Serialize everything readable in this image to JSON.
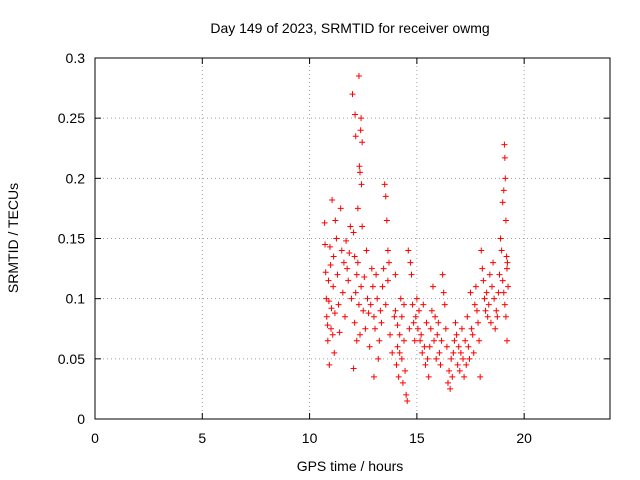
{
  "chart_data": {
    "type": "scatter",
    "title": "Day 149 of 2023, SRMTID for receiver owmg",
    "xlabel": "GPS time / hours",
    "ylabel": "SRMTID / TECUs",
    "xlim": [
      0,
      24
    ],
    "ylim": [
      0,
      0.3
    ],
    "xticks": [
      0,
      5,
      10,
      15,
      20
    ],
    "xtick_labels": [
      "0",
      "5",
      "10",
      "15",
      "20"
    ],
    "yticks": [
      0,
      0.05,
      0.1,
      0.15,
      0.2,
      0.25,
      0.3
    ],
    "ytick_labels": [
      "0",
      "0.05",
      "0.1",
      "0.15",
      "0.2",
      "0.25",
      "0.3"
    ],
    "grid": true,
    "marker": "+",
    "series": [
      {
        "name": "SRMTID",
        "color": "#ff0000",
        "points": [
          [
            10.7,
            0.163
          ],
          [
            10.75,
            0.122
          ],
          [
            10.8,
            0.085
          ],
          [
            10.85,
            0.065
          ],
          [
            10.9,
            0.098
          ],
          [
            10.95,
            0.143
          ],
          [
            11.0,
            0.075
          ],
          [
            11.05,
            0.182
          ],
          [
            11.1,
            0.11
          ],
          [
            11.15,
            0.055
          ],
          [
            10.72,
            0.145
          ],
          [
            10.78,
            0.1
          ],
          [
            10.84,
            0.078
          ],
          [
            10.88,
            0.115
          ],
          [
            10.92,
            0.045
          ],
          [
            10.98,
            0.128
          ],
          [
            11.02,
            0.092
          ],
          [
            11.08,
            0.07
          ],
          [
            11.12,
            0.135
          ],
          [
            11.18,
            0.088
          ],
          [
            11.2,
            0.165
          ],
          [
            11.25,
            0.15
          ],
          [
            11.3,
            0.12
          ],
          [
            11.35,
            0.095
          ],
          [
            11.4,
            0.072
          ],
          [
            11.45,
            0.175
          ],
          [
            11.5,
            0.14
          ],
          [
            11.55,
            0.105
          ],
          [
            11.6,
            0.13
          ],
          [
            11.65,
            0.085
          ],
          [
            11.7,
            0.148
          ],
          [
            11.75,
            0.125
          ],
          [
            11.8,
            0.115
          ],
          [
            11.85,
            0.138
          ],
          [
            11.9,
            0.16
          ],
          [
            11.95,
            0.1
          ],
          [
            12.0,
            0.27
          ],
          [
            12.05,
            0.155
          ],
          [
            12.1,
            0.135
          ],
          [
            12.12,
            0.253
          ],
          [
            12.15,
            0.235
          ],
          [
            12.2,
            0.12
          ],
          [
            12.25,
            0.175
          ],
          [
            12.3,
            0.285
          ],
          [
            12.32,
            0.21
          ],
          [
            12.35,
            0.205
          ],
          [
            12.38,
            0.24
          ],
          [
            12.4,
            0.25
          ],
          [
            12.42,
            0.195
          ],
          [
            12.45,
            0.23
          ],
          [
            12.1,
            0.08
          ],
          [
            12.2,
            0.065
          ],
          [
            12.3,
            0.095
          ],
          [
            12.4,
            0.11
          ],
          [
            12.5,
            0.09
          ],
          [
            12.6,
            0.075
          ],
          [
            12.7,
            0.1
          ],
          [
            12.8,
            0.06
          ],
          [
            12.9,
            0.125
          ],
          [
            13.0,
            0.085
          ],
          [
            12.05,
            0.042
          ],
          [
            12.15,
            0.105
          ],
          [
            12.25,
            0.13
          ],
          [
            12.35,
            0.07
          ],
          [
            12.45,
            0.16
          ],
          [
            12.55,
            0.118
          ],
          [
            12.65,
            0.14
          ],
          [
            12.75,
            0.088
          ],
          [
            12.85,
            0.095
          ],
          [
            12.95,
            0.11
          ],
          [
            13.0,
            0.035
          ],
          [
            13.1,
            0.12
          ],
          [
            13.2,
            0.05
          ],
          [
            13.3,
            0.09
          ],
          [
            13.4,
            0.11
          ],
          [
            13.5,
            0.195
          ],
          [
            13.55,
            0.185
          ],
          [
            13.6,
            0.165
          ],
          [
            13.65,
            0.14
          ],
          [
            13.7,
            0.13
          ],
          [
            13.05,
            0.075
          ],
          [
            13.15,
            0.1
          ],
          [
            13.25,
            0.065
          ],
          [
            13.35,
            0.08
          ],
          [
            13.45,
            0.125
          ],
          [
            13.55,
            0.095
          ],
          [
            13.65,
            0.115
          ],
          [
            13.75,
            0.07
          ],
          [
            13.85,
            0.055
          ],
          [
            13.95,
            0.085
          ],
          [
            14.0,
            0.12
          ],
          [
            14.05,
            0.045
          ],
          [
            14.1,
            0.06
          ],
          [
            14.15,
            0.035
          ],
          [
            14.2,
            0.07
          ],
          [
            14.25,
            0.1
          ],
          [
            14.3,
            0.05
          ],
          [
            14.35,
            0.03
          ],
          [
            14.4,
            0.065
          ],
          [
            14.45,
            0.04
          ],
          [
            14.0,
            0.09
          ],
          [
            14.1,
            0.078
          ],
          [
            14.2,
            0.055
          ],
          [
            14.3,
            0.085
          ],
          [
            14.4,
            0.095
          ],
          [
            14.5,
            0.02
          ],
          [
            14.55,
            0.015
          ],
          [
            14.6,
            0.14
          ],
          [
            14.65,
            0.075
          ],
          [
            14.7,
            0.13
          ],
          [
            14.75,
            0.12
          ],
          [
            14.8,
            0.095
          ],
          [
            14.85,
            0.08
          ],
          [
            14.9,
            0.065
          ],
          [
            14.95,
            0.085
          ],
          [
            15.0,
            0.1
          ],
          [
            15.05,
            0.075
          ],
          [
            15.1,
            0.09
          ],
          [
            15.15,
            0.065
          ],
          [
            15.2,
            0.07
          ],
          [
            15.25,
            0.055
          ],
          [
            15.3,
            0.095
          ],
          [
            15.35,
            0.06
          ],
          [
            15.4,
            0.045
          ],
          [
            15.45,
            0.08
          ],
          [
            15.5,
            0.05
          ],
          [
            15.55,
            0.035
          ],
          [
            15.6,
            0.06
          ],
          [
            15.65,
            0.075
          ],
          [
            15.7,
            0.09
          ],
          [
            15.75,
            0.11
          ],
          [
            15.8,
            0.065
          ],
          [
            15.85,
            0.085
          ],
          [
            15.9,
            0.05
          ],
          [
            15.95,
            0.07
          ],
          [
            16.0,
            0.08
          ],
          [
            16.05,
            0.055
          ],
          [
            16.1,
            0.045
          ],
          [
            16.15,
            0.065
          ],
          [
            16.2,
            0.12
          ],
          [
            16.25,
            0.105
          ],
          [
            16.3,
            0.095
          ],
          [
            16.35,
            0.075
          ],
          [
            16.4,
            0.06
          ],
          [
            16.45,
            0.03
          ],
          [
            16.5,
            0.04
          ],
          [
            16.55,
            0.025
          ],
          [
            16.6,
            0.05
          ],
          [
            16.65,
            0.035
          ],
          [
            16.7,
            0.055
          ],
          [
            16.75,
            0.065
          ],
          [
            16.8,
            0.08
          ],
          [
            16.85,
            0.07
          ],
          [
            16.9,
            0.045
          ],
          [
            16.95,
            0.06
          ],
          [
            17.0,
            0.04
          ],
          [
            17.05,
            0.055
          ],
          [
            17.1,
            0.075
          ],
          [
            17.15,
            0.05
          ],
          [
            17.2,
            0.035
          ],
          [
            17.25,
            0.065
          ],
          [
            17.3,
            0.045
          ],
          [
            17.35,
            0.085
          ],
          [
            17.4,
            0.06
          ],
          [
            17.45,
            0.05
          ],
          [
            17.5,
            0.105
          ],
          [
            17.55,
            0.075
          ],
          [
            17.6,
            0.07
          ],
          [
            17.65,
            0.055
          ],
          [
            17.7,
            0.095
          ],
          [
            17.75,
            0.11
          ],
          [
            17.8,
            0.09
          ],
          [
            17.85,
            0.08
          ],
          [
            17.9,
            0.065
          ],
          [
            17.95,
            0.035
          ],
          [
            18.0,
            0.14
          ],
          [
            18.05,
            0.125
          ],
          [
            18.1,
            0.115
          ],
          [
            18.15,
            0.1
          ],
          [
            18.2,
            0.09
          ],
          [
            18.25,
            0.105
          ],
          [
            18.3,
            0.085
          ],
          [
            18.35,
            0.095
          ],
          [
            18.4,
            0.12
          ],
          [
            18.45,
            0.08
          ],
          [
            18.5,
            0.11
          ],
          [
            18.55,
            0.13
          ],
          [
            18.6,
            0.1
          ],
          [
            18.65,
            0.075
          ],
          [
            18.7,
            0.09
          ],
          [
            18.75,
            0.085
          ],
          [
            18.8,
            0.105
          ],
          [
            18.85,
            0.12
          ],
          [
            18.9,
            0.15
          ],
          [
            18.95,
            0.14
          ],
          [
            19.0,
            0.18
          ],
          [
            19.05,
            0.19
          ],
          [
            19.08,
            0.228
          ],
          [
            19.1,
            0.217
          ],
          [
            19.12,
            0.2
          ],
          [
            19.15,
            0.165
          ],
          [
            19.18,
            0.135
          ],
          [
            19.2,
            0.125
          ],
          [
            19.22,
            0.13
          ],
          [
            19.25,
            0.11
          ],
          [
            19.1,
            0.095
          ],
          [
            19.15,
            0.085
          ],
          [
            19.2,
            0.065
          ],
          [
            19.05,
            0.105
          ],
          [
            19.0,
            0.115
          ]
        ]
      }
    ]
  }
}
